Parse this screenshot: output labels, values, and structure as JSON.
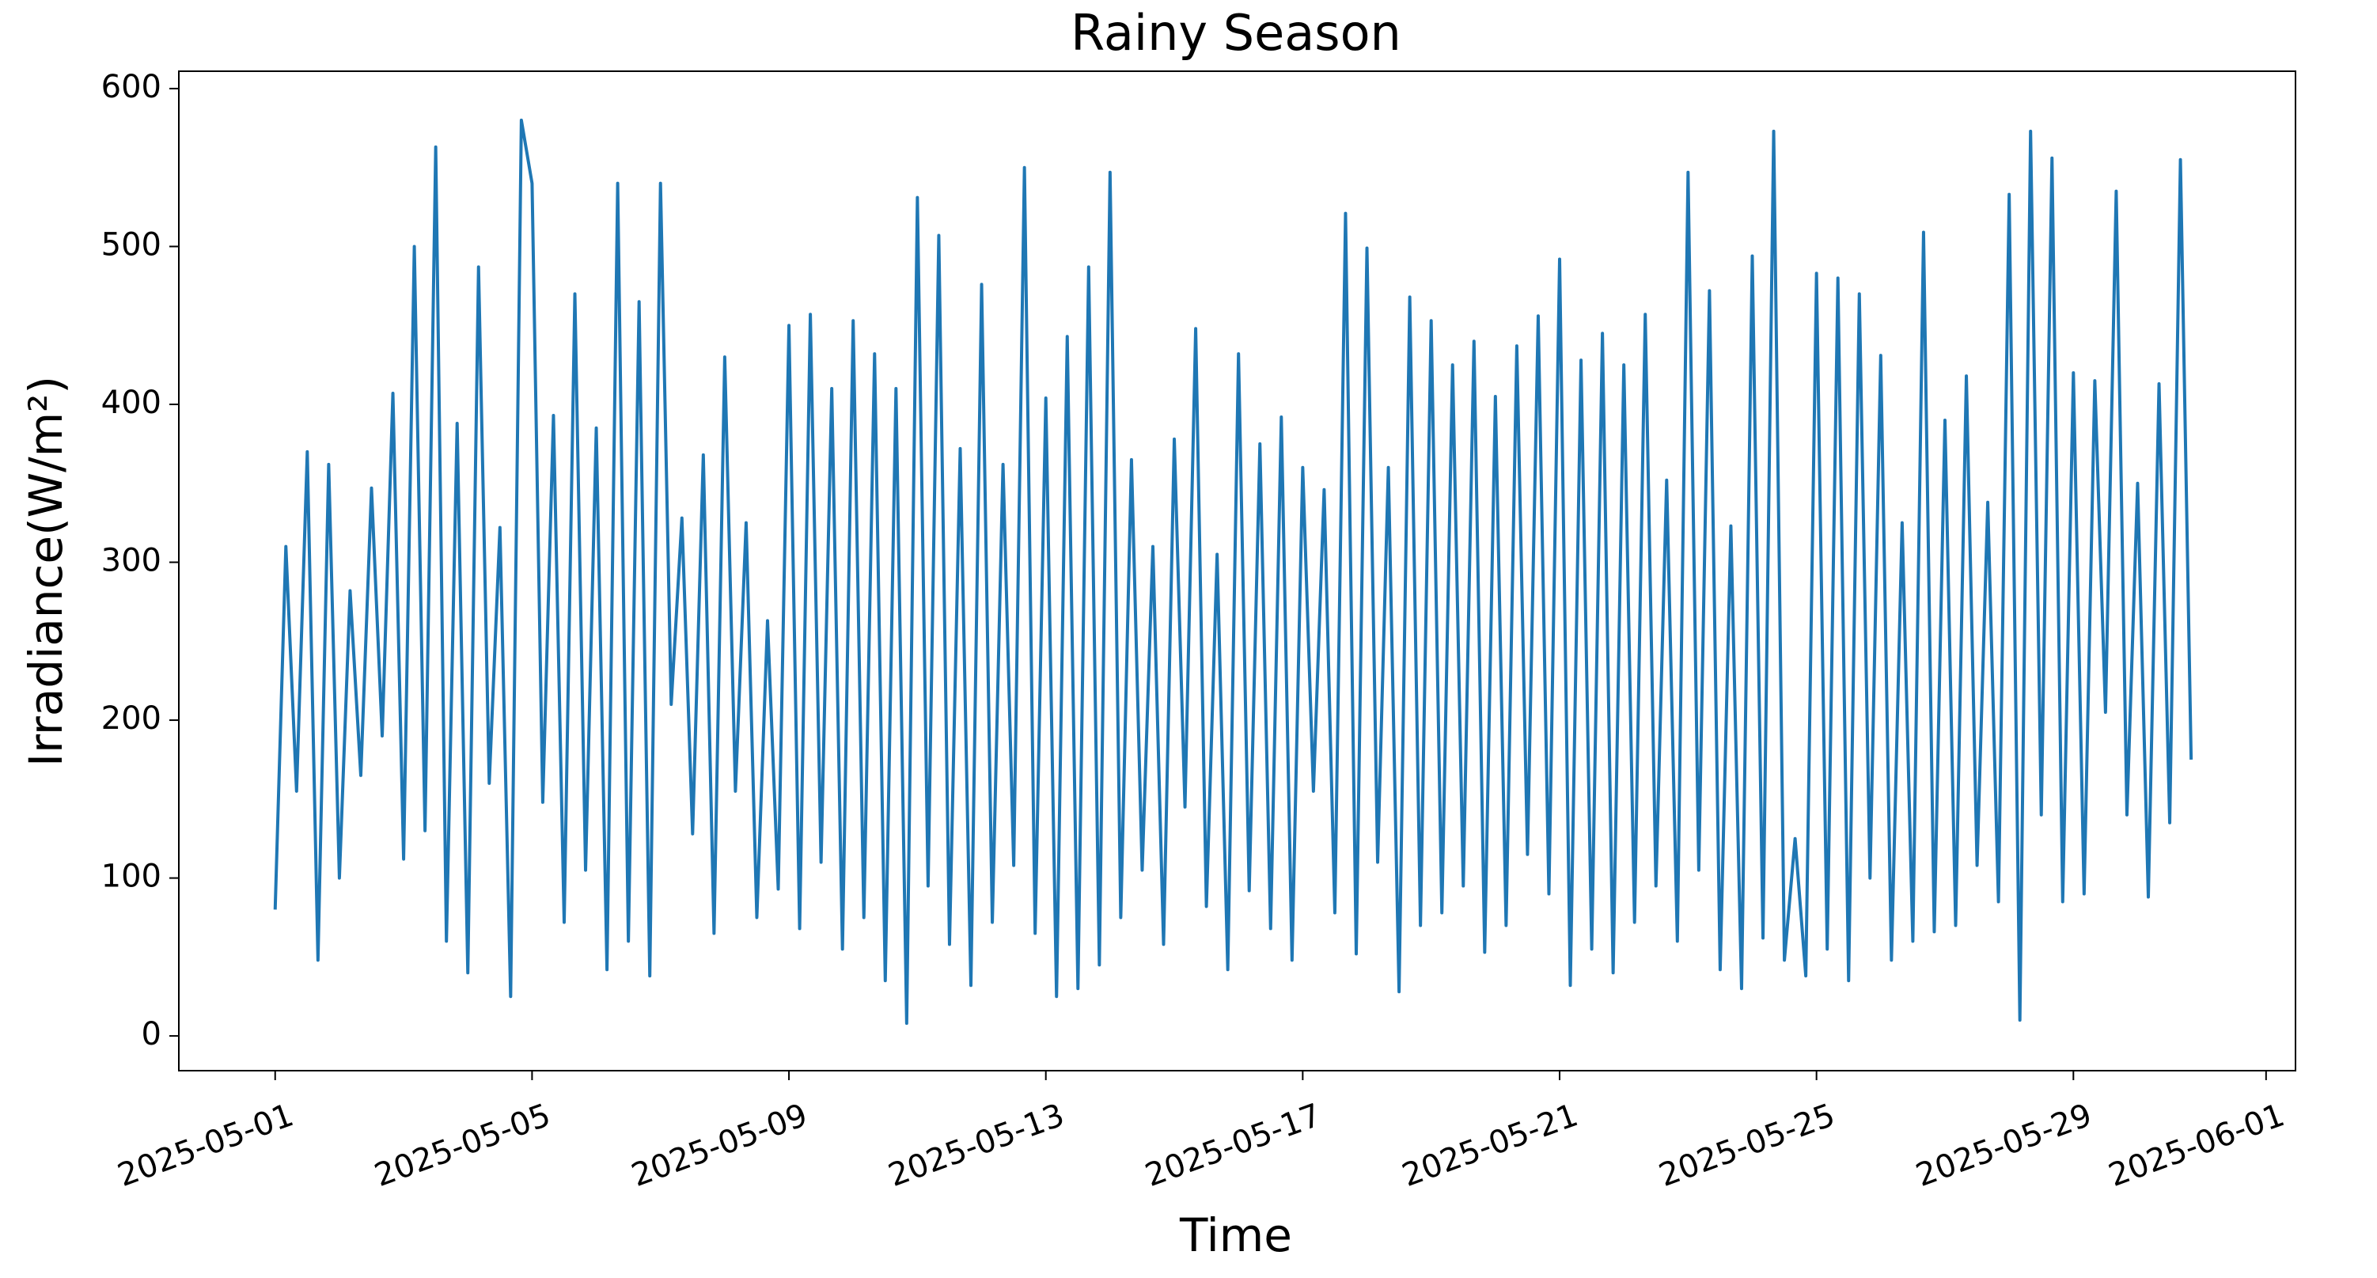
{
  "chart_data": {
    "type": "line",
    "title": "Rainy Season",
    "x_label": "Time",
    "y_label": "Irradiance(W/m²)",
    "x": [
      "2025-05-01 00:00",
      "2025-05-01 04:00",
      "2025-05-01 08:00",
      "2025-05-01 12:00",
      "2025-05-01 16:00",
      "2025-05-01 20:00",
      "2025-05-02 00:00",
      "2025-05-02 04:00",
      "2025-05-02 08:00",
      "2025-05-02 12:00",
      "2025-05-02 16:00",
      "2025-05-02 20:00",
      "2025-05-03 00:00",
      "2025-05-03 04:00",
      "2025-05-03 08:00",
      "2025-05-03 12:00",
      "2025-05-03 16:00",
      "2025-05-03 20:00",
      "2025-05-04 00:00",
      "2025-05-04 04:00",
      "2025-05-04 08:00",
      "2025-05-04 12:00",
      "2025-05-04 16:00",
      "2025-05-04 20:00",
      "2025-05-05 00:00",
      "2025-05-05 04:00",
      "2025-05-05 08:00",
      "2025-05-05 12:00",
      "2025-05-05 16:00",
      "2025-05-05 20:00",
      "2025-05-06 00:00",
      "2025-05-06 04:00",
      "2025-05-06 08:00",
      "2025-05-06 12:00",
      "2025-05-06 16:00",
      "2025-05-06 20:00",
      "2025-05-07 00:00",
      "2025-05-07 04:00",
      "2025-05-07 08:00",
      "2025-05-07 12:00",
      "2025-05-07 16:00",
      "2025-05-07 20:00",
      "2025-05-08 00:00",
      "2025-05-08 04:00",
      "2025-05-08 08:00",
      "2025-05-08 12:00",
      "2025-05-08 16:00",
      "2025-05-08 20:00",
      "2025-05-09 00:00",
      "2025-05-09 04:00",
      "2025-05-09 08:00",
      "2025-05-09 12:00",
      "2025-05-09 16:00",
      "2025-05-09 20:00",
      "2025-05-10 00:00",
      "2025-05-10 04:00",
      "2025-05-10 08:00",
      "2025-05-10 12:00",
      "2025-05-10 16:00",
      "2025-05-10 20:00",
      "2025-05-11 00:00",
      "2025-05-11 04:00",
      "2025-05-11 08:00",
      "2025-05-11 12:00",
      "2025-05-11 16:00",
      "2025-05-11 20:00",
      "2025-05-12 00:00",
      "2025-05-12 04:00",
      "2025-05-12 08:00",
      "2025-05-12 12:00",
      "2025-05-12 16:00",
      "2025-05-12 20:00",
      "2025-05-13 00:00",
      "2025-05-13 04:00",
      "2025-05-13 08:00",
      "2025-05-13 12:00",
      "2025-05-13 16:00",
      "2025-05-13 20:00",
      "2025-05-14 00:00",
      "2025-05-14 04:00",
      "2025-05-14 08:00",
      "2025-05-14 12:00",
      "2025-05-14 16:00",
      "2025-05-14 20:00",
      "2025-05-15 00:00",
      "2025-05-15 04:00",
      "2025-05-15 08:00",
      "2025-05-15 12:00",
      "2025-05-15 16:00",
      "2025-05-15 20:00",
      "2025-05-16 00:00",
      "2025-05-16 04:00",
      "2025-05-16 08:00",
      "2025-05-16 12:00",
      "2025-05-16 16:00",
      "2025-05-16 20:00",
      "2025-05-17 00:00",
      "2025-05-17 04:00",
      "2025-05-17 08:00",
      "2025-05-17 12:00",
      "2025-05-17 16:00",
      "2025-05-17 20:00",
      "2025-05-18 00:00",
      "2025-05-18 04:00",
      "2025-05-18 08:00",
      "2025-05-18 12:00",
      "2025-05-18 16:00",
      "2025-05-18 20:00",
      "2025-05-19 00:00",
      "2025-05-19 04:00",
      "2025-05-19 08:00",
      "2025-05-19 12:00",
      "2025-05-19 16:00",
      "2025-05-19 20:00",
      "2025-05-20 00:00",
      "2025-05-20 04:00",
      "2025-05-20 08:00",
      "2025-05-20 12:00",
      "2025-05-20 16:00",
      "2025-05-20 20:00",
      "2025-05-21 00:00",
      "2025-05-21 04:00",
      "2025-05-21 08:00",
      "2025-05-21 12:00",
      "2025-05-21 16:00",
      "2025-05-21 20:00",
      "2025-05-22 00:00",
      "2025-05-22 04:00",
      "2025-05-22 08:00",
      "2025-05-22 12:00",
      "2025-05-22 16:00",
      "2025-05-22 20:00",
      "2025-05-23 00:00",
      "2025-05-23 04:00",
      "2025-05-23 08:00",
      "2025-05-23 12:00",
      "2025-05-23 16:00",
      "2025-05-23 20:00",
      "2025-05-24 00:00",
      "2025-05-24 04:00",
      "2025-05-24 08:00",
      "2025-05-24 12:00",
      "2025-05-24 16:00",
      "2025-05-24 20:00",
      "2025-05-25 00:00",
      "2025-05-25 04:00",
      "2025-05-25 08:00",
      "2025-05-25 12:00",
      "2025-05-25 16:00",
      "2025-05-25 20:00",
      "2025-05-26 00:00",
      "2025-05-26 04:00",
      "2025-05-26 08:00",
      "2025-05-26 12:00",
      "2025-05-26 16:00",
      "2025-05-26 20:00",
      "2025-05-27 00:00",
      "2025-05-27 04:00",
      "2025-05-27 08:00",
      "2025-05-27 12:00",
      "2025-05-27 16:00",
      "2025-05-27 20:00",
      "2025-05-28 00:00",
      "2025-05-28 04:00",
      "2025-05-28 08:00",
      "2025-05-28 12:00",
      "2025-05-28 16:00",
      "2025-05-28 20:00",
      "2025-05-29 00:00",
      "2025-05-29 04:00",
      "2025-05-29 08:00",
      "2025-05-29 12:00",
      "2025-05-29 16:00",
      "2025-05-29 20:00",
      "2025-05-30 00:00",
      "2025-05-30 04:00",
      "2025-05-30 08:00",
      "2025-05-30 12:00",
      "2025-05-30 16:00",
      "2025-05-30 20:00"
    ],
    "series": [
      {
        "color": "#1f77b4",
        "values": [
          80,
          310,
          155,
          370,
          48,
          362,
          100,
          282,
          165,
          347,
          190,
          407,
          112,
          500,
          130,
          563,
          60,
          388,
          40,
          487,
          160,
          322,
          25,
          580,
          540,
          148,
          393,
          72,
          470,
          105,
          385,
          42,
          540,
          60,
          465,
          38,
          540,
          210,
          328,
          128,
          368,
          65,
          430,
          155,
          325,
          75,
          263,
          93,
          450,
          68,
          457,
          110,
          410,
          55,
          453,
          75,
          432,
          35,
          410,
          8,
          531,
          95,
          507,
          58,
          372,
          32,
          476,
          72,
          362,
          108,
          550,
          65,
          404,
          25,
          443,
          30,
          487,
          45,
          547,
          75,
          365,
          105,
          310,
          58,
          378,
          145,
          448,
          82,
          305,
          42,
          432,
          92,
          375,
          68,
          392,
          48,
          360,
          155,
          346,
          78,
          521,
          52,
          499,
          110,
          360,
          28,
          468,
          70,
          453,
          78,
          425,
          95,
          440,
          53,
          405,
          70,
          437,
          115,
          456,
          90,
          492,
          32,
          428,
          55,
          445,
          40,
          425,
          72,
          457,
          95,
          352,
          60,
          547,
          105,
          472,
          42,
          323,
          30,
          494,
          62,
          573,
          48,
          125,
          38,
          483,
          55,
          480,
          35,
          470,
          100,
          431,
          48,
          325,
          60,
          509,
          66,
          390,
          70,
          418,
          108,
          338,
          85,
          533,
          10,
          573,
          140,
          556,
          85,
          420,
          90,
          415,
          205,
          535,
          140,
          350,
          88,
          413,
          135,
          555,
          175
        ]
      }
    ],
    "xlim": [
      "2025-04-29 12:00",
      "2025-06-01 11:00"
    ],
    "xticks": [
      "2025-05-01",
      "2025-05-05",
      "2025-05-09",
      "2025-05-13",
      "2025-05-17",
      "2025-05-21",
      "2025-05-25",
      "2025-05-29",
      "2025-06-01"
    ],
    "ylim": [
      -22,
      611
    ],
    "yticks": [
      0,
      100,
      200,
      300,
      400,
      500,
      600
    ]
  }
}
